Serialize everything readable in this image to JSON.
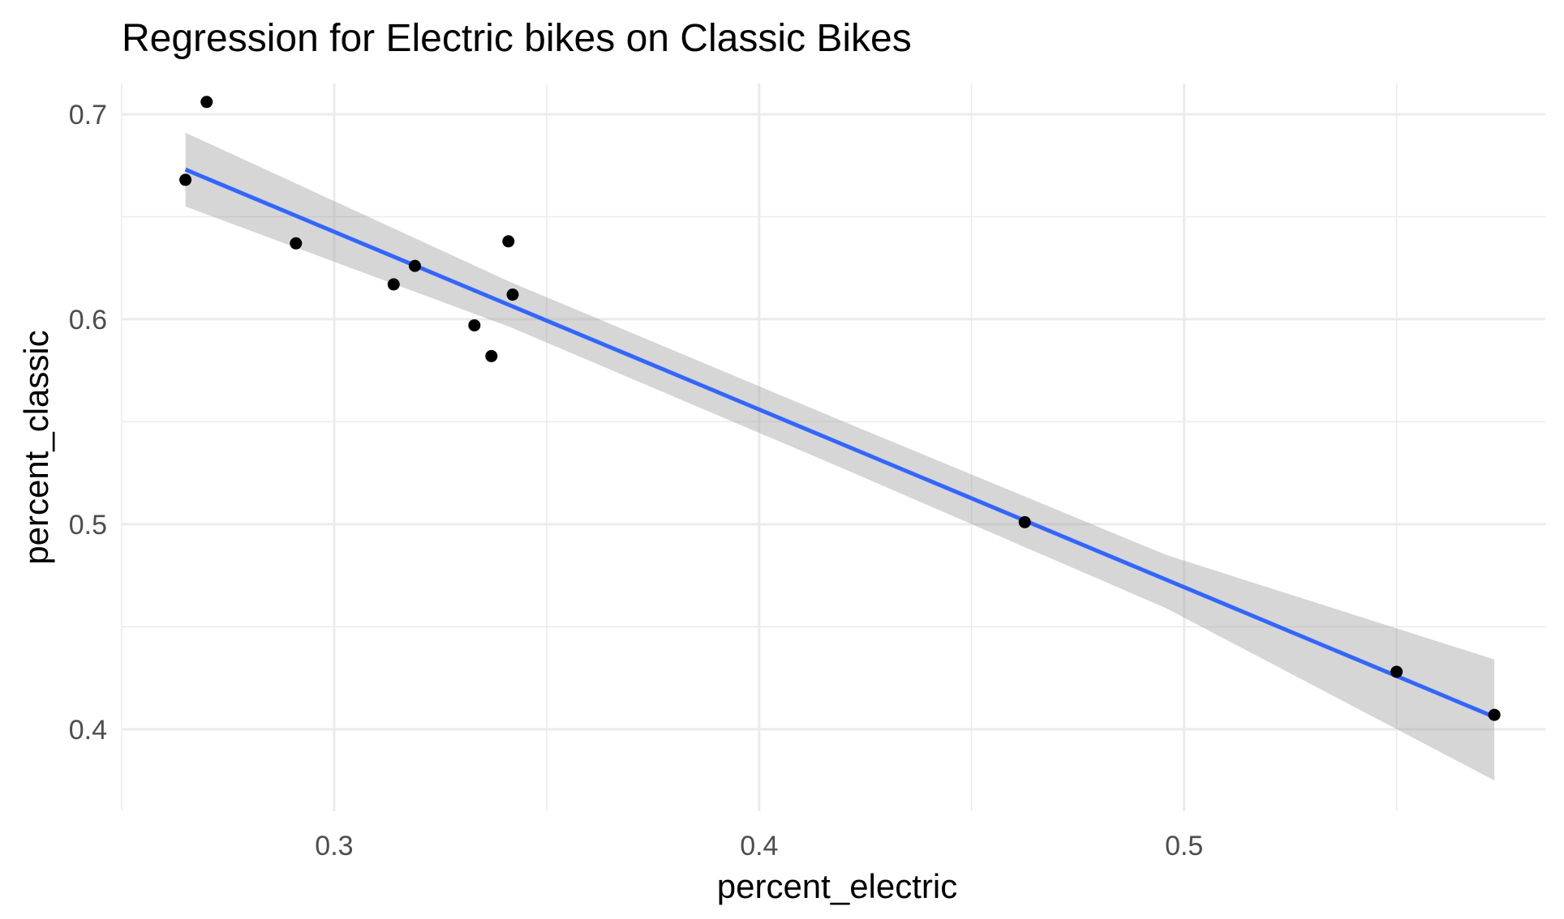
{
  "chart_data": {
    "type": "scatter",
    "title": "Regression for Electric bikes on Classic Bikes",
    "xlabel": "percent_electric",
    "ylabel": "percent_classic",
    "xlim": [
      0.25,
      0.585
    ],
    "ylim": [
      0.36,
      0.715
    ],
    "x_ticks": [
      0.3,
      0.4,
      0.5
    ],
    "x_tick_labels": [
      "0.3",
      "0.4",
      "0.5"
    ],
    "y_ticks": [
      0.4,
      0.5,
      0.6,
      0.7
    ],
    "y_tick_labels": [
      "0.4",
      "0.5",
      "0.6",
      "0.7"
    ],
    "x_minor_grid": [
      0.25,
      0.35,
      0.45,
      0.55
    ],
    "y_minor_grid": [
      0.45,
      0.55,
      0.65
    ],
    "grid": true,
    "series": [
      {
        "type": "scatter",
        "color": "#000000",
        "points": [
          {
            "x": 0.265,
            "y": 0.668
          },
          {
            "x": 0.27,
            "y": 0.706
          },
          {
            "x": 0.291,
            "y": 0.637
          },
          {
            "x": 0.314,
            "y": 0.617
          },
          {
            "x": 0.319,
            "y": 0.626
          },
          {
            "x": 0.333,
            "y": 0.597
          },
          {
            "x": 0.337,
            "y": 0.582
          },
          {
            "x": 0.341,
            "y": 0.638
          },
          {
            "x": 0.342,
            "y": 0.612
          },
          {
            "x": 0.4625,
            "y": 0.501
          },
          {
            "x": 0.55,
            "y": 0.428
          },
          {
            "x": 0.573,
            "y": 0.407
          }
        ]
      },
      {
        "type": "line",
        "method": "lm",
        "color": "#3366FF",
        "x": [
          0.265,
          0.573
        ],
        "y": [
          0.673,
          0.406
        ],
        "ci_color": "#999999",
        "ci": [
          {
            "x": 0.265,
            "lower": 0.655,
            "upper": 0.691
          },
          {
            "x": 0.3416,
            "lower": 0.596,
            "upper": 0.618
          },
          {
            "x": 0.4188,
            "lower": 0.528,
            "upper": 0.551
          },
          {
            "x": 0.4958,
            "lower": 0.459,
            "upper": 0.485
          },
          {
            "x": 0.573,
            "lower": 0.375,
            "upper": 0.434
          }
        ]
      }
    ]
  }
}
